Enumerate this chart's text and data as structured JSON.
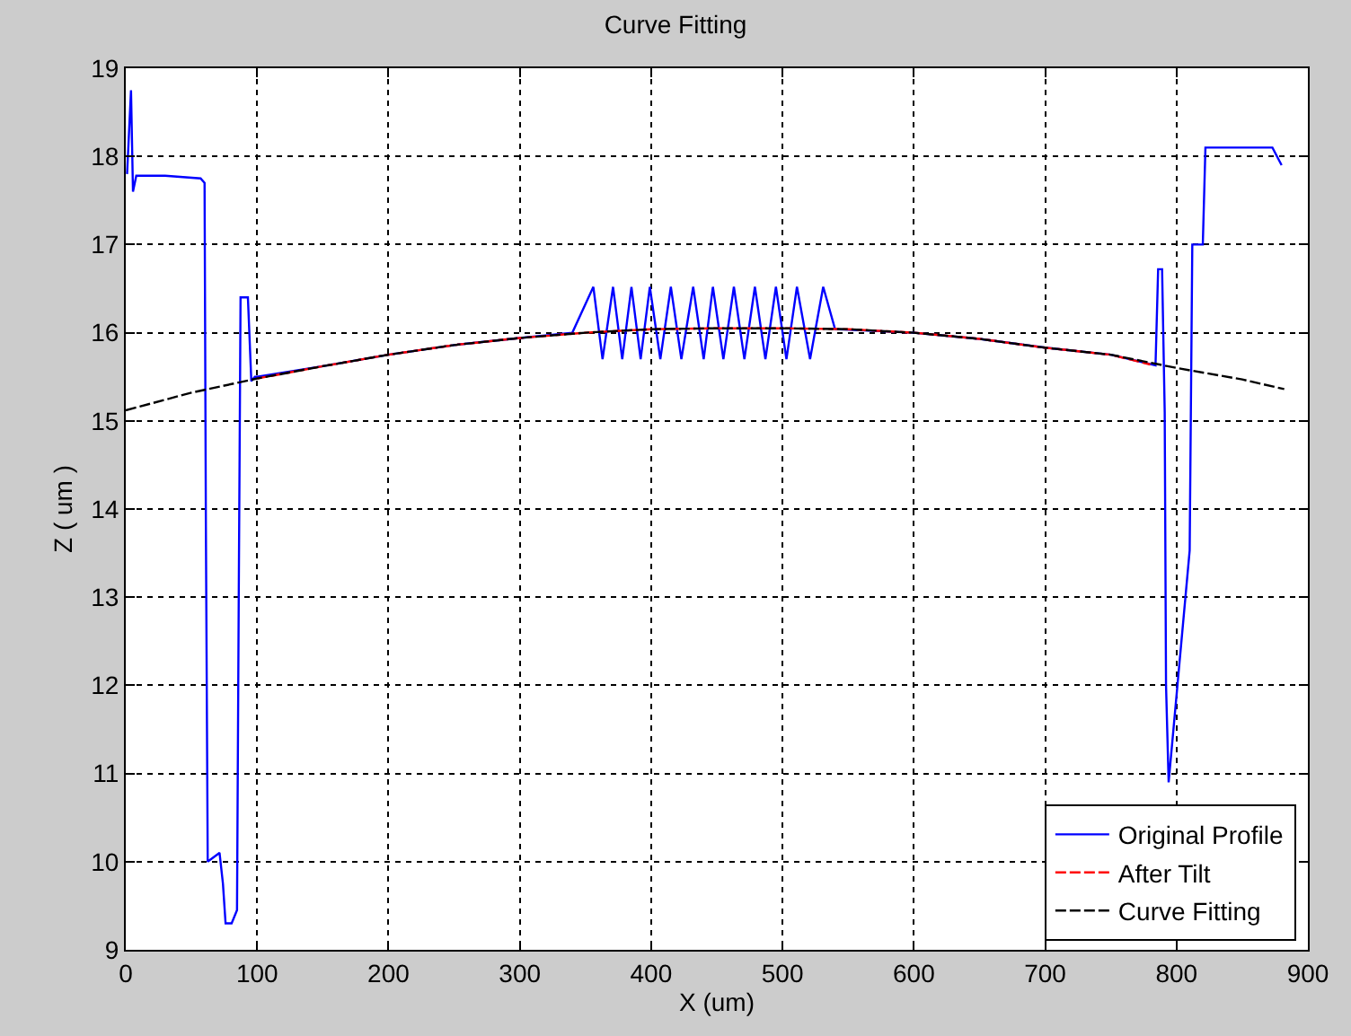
{
  "chart_data": {
    "type": "line",
    "title": "Curve Fitting",
    "xlabel": "X (um)",
    "ylabel": "Z ( um )",
    "xlim": [
      0,
      900
    ],
    "ylim": [
      9,
      19
    ],
    "xticks": [
      0,
      100,
      200,
      300,
      400,
      500,
      600,
      700,
      800,
      900
    ],
    "yticks": [
      9,
      10,
      11,
      12,
      13,
      14,
      15,
      16,
      17,
      18,
      19
    ],
    "grid": true,
    "legend": "bottom right",
    "marker": "none",
    "series": [
      {
        "name": "Original Profile",
        "color": "#0000ff",
        "line_style": "solid",
        "x": [
          1,
          4,
          5.5,
          8,
          30,
          57,
          60,
          61,
          62.4,
          71.4,
          74,
          76,
          80.6,
          84.7,
          86,
          87.4,
          88.8,
          93,
          95.6,
          98.3,
          100,
          150,
          200,
          250,
          300,
          340,
          356,
          363,
          371,
          378,
          385,
          392,
          399,
          407,
          415,
          423,
          432,
          440,
          447,
          455,
          463,
          471,
          479,
          487,
          495,
          503,
          511,
          521,
          531,
          540,
          600,
          650,
          700,
          750,
          784,
          786,
          789,
          791,
          792,
          794,
          810,
          812,
          820,
          822,
          873,
          880
        ],
        "values": [
          17.8,
          18.75,
          17.6,
          17.78,
          17.78,
          17.75,
          17.7,
          13.8,
          10.0,
          10.1,
          9.75,
          9.3,
          9.3,
          9.45,
          12.95,
          16.4,
          16.4,
          16.4,
          15.45,
          15.5,
          15.5,
          15.62,
          15.75,
          15.86,
          15.94,
          16.0,
          16.52,
          15.7,
          16.52,
          15.7,
          16.52,
          15.7,
          16.52,
          15.7,
          16.52,
          15.7,
          16.52,
          15.7,
          16.52,
          15.7,
          16.52,
          15.7,
          16.52,
          15.7,
          16.52,
          15.7,
          16.52,
          15.7,
          16.52,
          16.04,
          16.0,
          15.93,
          15.83,
          15.75,
          15.63,
          16.72,
          16.72,
          15.1,
          12.0,
          10.9,
          13.53,
          17.0,
          17.0,
          18.1,
          18.1,
          17.9
        ]
      },
      {
        "name": "After Tilt",
        "color": "#ff0000",
        "line_style": "dashed",
        "x": [
          100,
          150,
          200,
          250,
          300,
          350,
          400,
          450,
          500,
          550,
          600,
          650,
          700,
          750,
          780
        ],
        "values": [
          15.48,
          15.62,
          15.75,
          15.86,
          15.94,
          16.0,
          16.04,
          16.05,
          16.05,
          16.04,
          16.0,
          15.93,
          15.83,
          15.75,
          15.64
        ]
      },
      {
        "name": "Curve Fitting",
        "color": "#000000",
        "line_style": "dashed",
        "x": [
          0,
          50,
          100,
          150,
          200,
          250,
          300,
          350,
          400,
          450,
          500,
          550,
          600,
          650,
          700,
          750,
          800,
          850,
          882
        ],
        "values": [
          15.12,
          15.32,
          15.48,
          15.62,
          15.75,
          15.86,
          15.94,
          16.0,
          16.04,
          16.05,
          16.05,
          16.04,
          16.0,
          15.93,
          15.83,
          15.75,
          15.6,
          15.47,
          15.36
        ]
      }
    ]
  }
}
